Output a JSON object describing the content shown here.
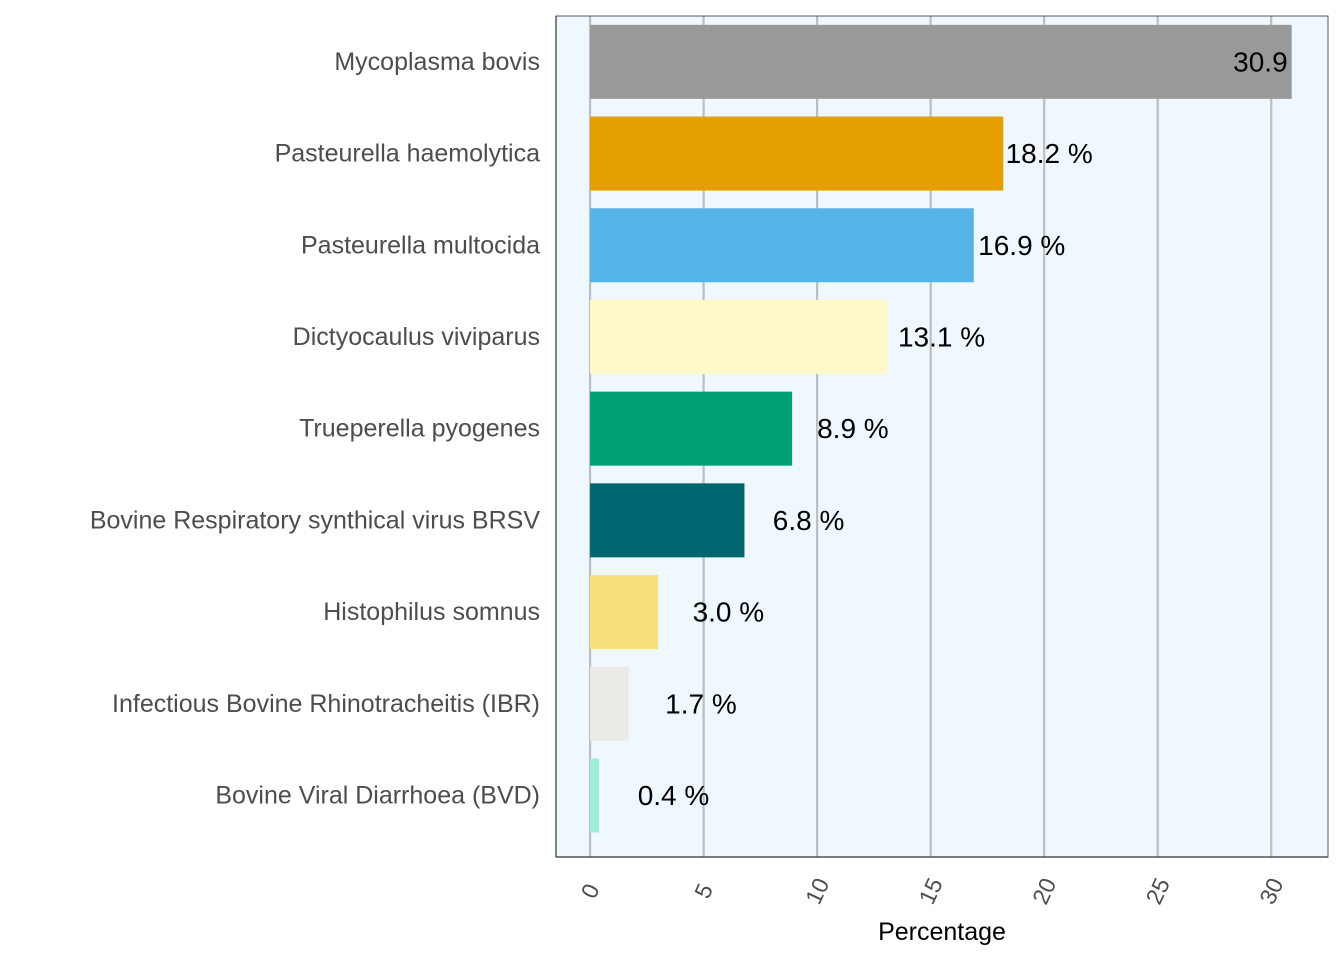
{
  "chart_data": {
    "type": "bar",
    "orientation": "horizontal",
    "categories": [
      "Mycoplasma bovis",
      "Pasteurella haemolytica",
      "Pasteurella multocida",
      "Dictyocaulus viviparus",
      "Trueperella pyogenes",
      "Bovine Respiratory synthical virus BRSV",
      "Histophilus somnus",
      "Infectious Bovine Rhinotracheitis (IBR)",
      "Bovine Viral Diarrhoea (BVD)"
    ],
    "values": [
      30.9,
      18.2,
      16.9,
      13.1,
      8.9,
      6.8,
      3.0,
      1.7,
      0.4
    ],
    "data_labels": [
      "30.9",
      "18.2 %",
      "16.9 %",
      "13.1 %",
      "8.9 %",
      "6.8 %",
      "3.0 %",
      "1.7 %",
      "0.4 %"
    ],
    "colors": [
      "#999999",
      "#E69F00",
      "#56B4E9",
      "#FFF8C8",
      "#009E73",
      "#006670",
      "#F9E07A",
      "#ECEAE6",
      "#9FEDD7"
    ],
    "xlabel": "Percentage",
    "ylabel": "",
    "title": "",
    "xlim": [
      -1.5,
      32.5
    ],
    "xticks": [
      0,
      5,
      10,
      15,
      20,
      25,
      30
    ],
    "xtick_labels": [
      "0",
      "5",
      "10",
      "15",
      "20",
      "25",
      "30"
    ],
    "tick_label_rotation": "rotated",
    "grid": "vertical major",
    "panel_background": "#EFF7FF",
    "grid_color": "#BEBEBE"
  }
}
